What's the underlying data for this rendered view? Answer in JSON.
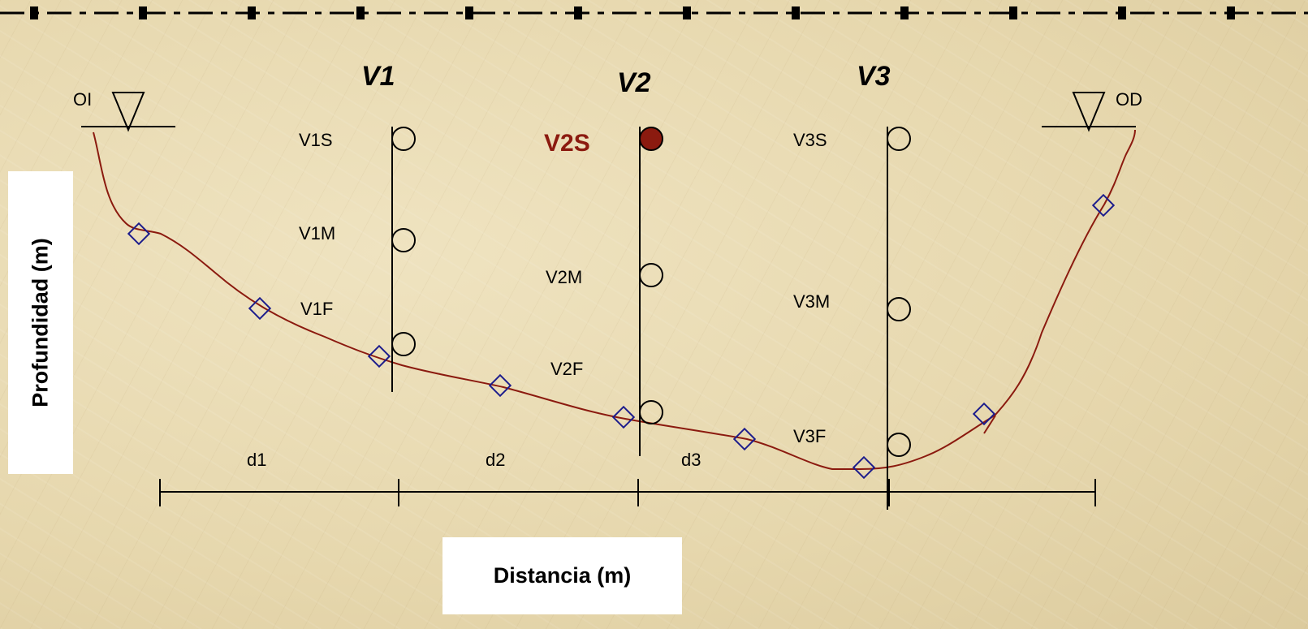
{
  "verticals": [
    {
      "id": "V1",
      "points": [
        {
          "label": "V1S",
          "filled": false
        },
        {
          "label": "V1M",
          "filled": false
        },
        {
          "label": "V1F",
          "filled": false
        }
      ]
    },
    {
      "id": "V2",
      "points": [
        {
          "label": "V2S",
          "filled": true
        },
        {
          "label": "V2M",
          "filled": false
        },
        {
          "label": "V2F",
          "filled": false
        }
      ]
    },
    {
      "id": "V3",
      "points": [
        {
          "label": "V3S",
          "filled": false
        },
        {
          "label": "V3M",
          "filled": false
        },
        {
          "label": "V3F",
          "filled": false
        }
      ]
    }
  ],
  "banks": {
    "left": "OI",
    "right": "OD"
  },
  "distances": [
    "d1",
    "d2",
    "d3"
  ],
  "axes": {
    "y_label": "Profundidad  (m)",
    "x_label": "Distancia  (m)"
  },
  "colors": {
    "bed_profile": "#8b1a0f",
    "diamond_marker": "#1c1c8c",
    "highlight": "#8b1a0f"
  }
}
